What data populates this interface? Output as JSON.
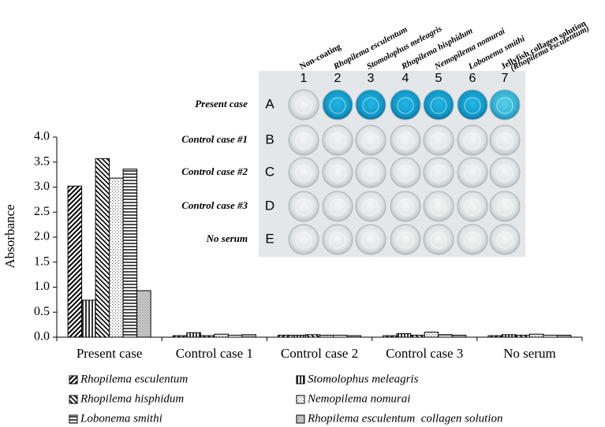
{
  "chart_data": {
    "type": "bar",
    "ylabel": "Absorbance",
    "categories": [
      "Present case",
      "Control case 1",
      "Control case 2",
      "Control case 3",
      "No serum"
    ],
    "series": [
      {
        "name": "Rhopilema esculentum",
        "color": "#000000",
        "pattern": "diagonal",
        "values": [
          3.02,
          0.03,
          0.04,
          0.03,
          0.03
        ]
      },
      {
        "name": "Stomolophus meleagris",
        "color": "#000000",
        "pattern": "vertical",
        "values": [
          0.74,
          0.09,
          0.04,
          0.07,
          0.05
        ]
      },
      {
        "name": "Rhopilema hisphidum",
        "color": "#000000",
        "pattern": "backdiagonal",
        "values": [
          3.57,
          0.03,
          0.05,
          0.04,
          0.04
        ]
      },
      {
        "name": "Nemopilema nomurai",
        "color": "#000000",
        "pattern": "dots",
        "values": [
          3.18,
          0.06,
          0.04,
          0.1,
          0.06
        ]
      },
      {
        "name": "Lobonema smithi",
        "color": "#000000",
        "pattern": "horizontal",
        "values": [
          3.36,
          0.04,
          0.04,
          0.05,
          0.04
        ]
      },
      {
        "name": "Rhopilema esculentum  collagen solution",
        "color": "#000000",
        "pattern": "densedots",
        "values": [
          0.93,
          0.05,
          0.03,
          0.04,
          0.04
        ]
      }
    ],
    "ylim": [
      0,
      4
    ],
    "yticks": [
      {
        "value": 0,
        "label": "0.0"
      },
      {
        "value": 0.5,
        "label": "0.5"
      },
      {
        "value": 1,
        "label": "1.0"
      },
      {
        "value": 1.5,
        "label": "1.5"
      },
      {
        "value": 2,
        "label": "2.0"
      },
      {
        "value": 2.5,
        "label": "2.5"
      },
      {
        "value": 3,
        "label": "3.0"
      },
      {
        "value": 3.5,
        "label": "3.5"
      },
      {
        "value": 4,
        "label": "4.0"
      }
    ],
    "grid": false
  },
  "inset": {
    "column_labels": [
      "Non-coating",
      "Rhopilema esculentum",
      "Stomolophus meleagris",
      "Rhopilema hisphidum",
      "Nemopilema nomurai",
      "Lobonema smithi",
      [
        "Jellyfish collagen solution",
        "(Rhopilema esculentum)"
      ]
    ],
    "column_numbers": [
      "1",
      "2",
      "3",
      "4",
      "5",
      "6",
      "7"
    ],
    "row_labels": [
      "Present case",
      "Control case #1",
      "Control case #2",
      "Control case #3",
      "No serum"
    ],
    "row_letters": [
      "A",
      "B",
      "C",
      "D",
      "E"
    ]
  }
}
